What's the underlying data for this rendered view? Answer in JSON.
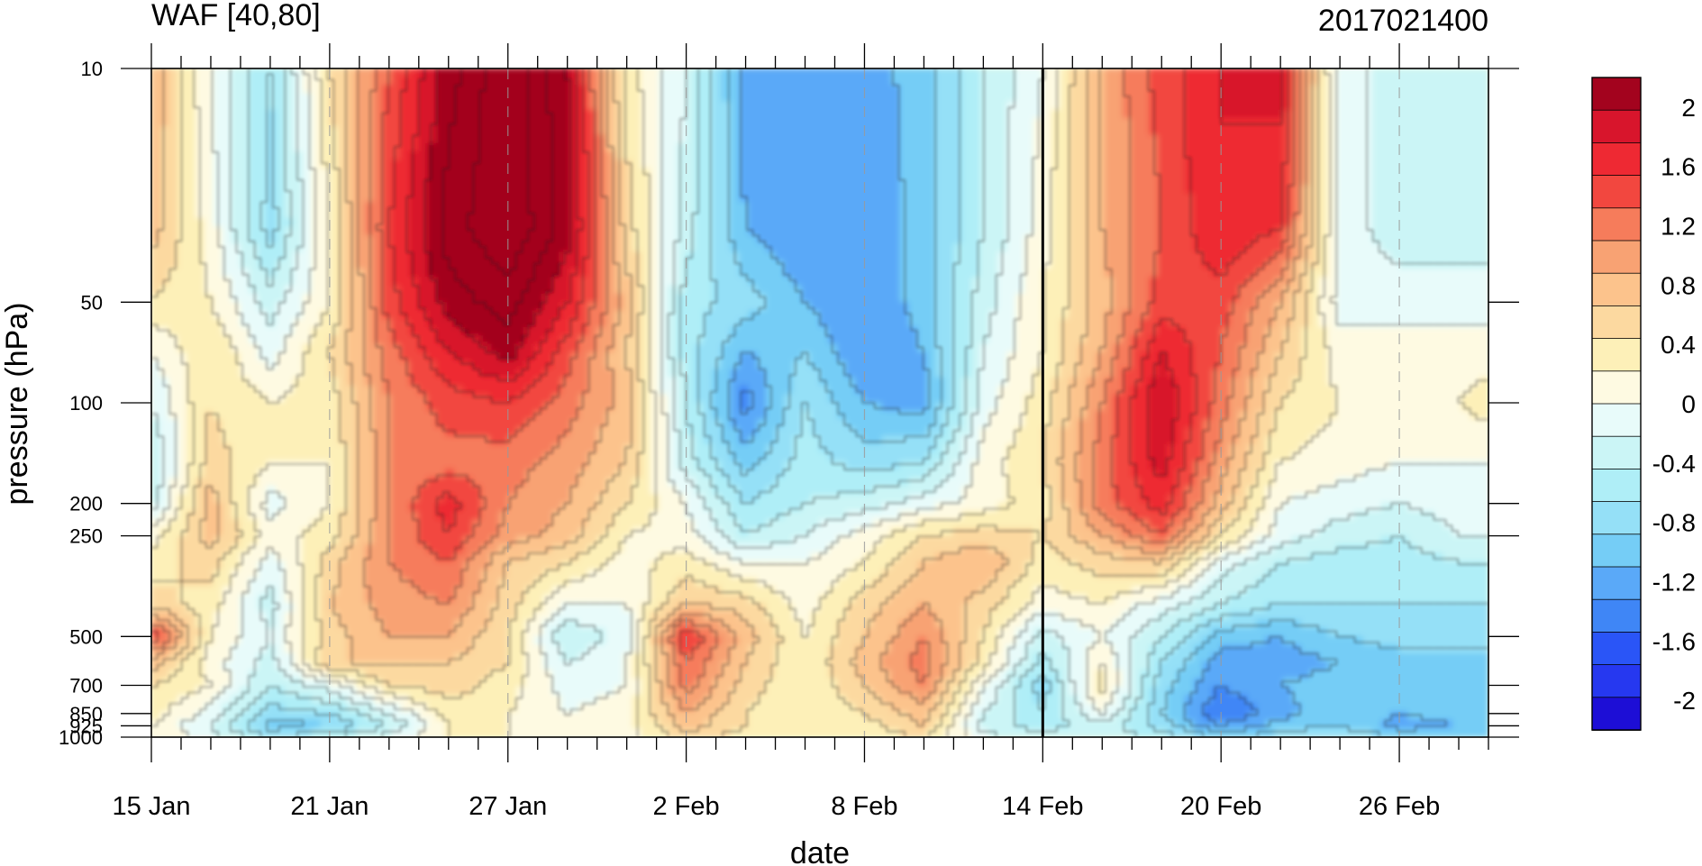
{
  "chart_data": {
    "type": "heatmap",
    "title": "WAF [40,80]",
    "subtitle": "2017021400",
    "xlabel": "date",
    "ylabel": "pressure (hPa)",
    "x_tick_labels": [
      "15 Jan",
      "21 Jan",
      "27 Jan",
      "2 Feb",
      "8 Feb",
      "14 Feb",
      "20 Feb",
      "26 Feb"
    ],
    "x_tick_day_index": [
      0,
      6,
      12,
      18,
      24,
      30,
      36,
      42
    ],
    "x_range_days": [
      0,
      45
    ],
    "y_tick_labels": [
      "10",
      "50",
      "100",
      "200",
      "250",
      "500",
      "700",
      "850",
      "925",
      "1000"
    ],
    "y_tick_values": [
      10,
      50,
      100,
      200,
      250,
      500,
      700,
      850,
      925,
      1000
    ],
    "y_range": [
      10,
      1000
    ],
    "y_scale": "log",
    "y_inverted": true,
    "marker_line_day_index": 30,
    "colorbar": {
      "labels": [
        "2",
        "1.6",
        "1.2",
        "0.8",
        "0.4",
        "0",
        "-0.4",
        "-0.8",
        "-1.2",
        "-1.6",
        "-2"
      ],
      "label_values": [
        2,
        1.6,
        1.2,
        0.8,
        0.4,
        0,
        -0.4,
        -0.8,
        -1.2,
        -1.6,
        -2
      ],
      "levels": [
        -2.2,
        -2.0,
        -1.8,
        -1.6,
        -1.4,
        -1.2,
        -1.0,
        -0.8,
        -0.6,
        -0.4,
        -0.2,
        0.0,
        0.2,
        0.4,
        0.6,
        0.8,
        1.0,
        1.2,
        1.4,
        1.6,
        1.8,
        2.0,
        2.2
      ],
      "colors": [
        "#1d0ed6",
        "#2638f0",
        "#2a55f7",
        "#3f86f6",
        "#5aa9f8",
        "#75cdf6",
        "#95e0f7",
        "#afeef7",
        "#cbf5f6",
        "#e8fbfa",
        "#fefae2",
        "#fdf0b8",
        "#fcd9a0",
        "#fcc38c",
        "#f8a273",
        "#f67c5b",
        "#f2473f",
        "#ee2933",
        "#d8152c",
        "#a3031e"
      ]
    },
    "field": {
      "p_levels": [
        10,
        30,
        50,
        70,
        100,
        150,
        200,
        250,
        300,
        400,
        500,
        600,
        700,
        850,
        925,
        1000
      ],
      "days": [
        0,
        2,
        4,
        6,
        8,
        10,
        12,
        14,
        16,
        18,
        20,
        22,
        24,
        26,
        28,
        30,
        32,
        34,
        36,
        38,
        40,
        42,
        44,
        45
      ],
      "values": [
        [
          0.6,
          -0.2,
          -0.8,
          0.2,
          1.0,
          1.7,
          2.2,
          1.6,
          0.1,
          -0.4,
          -1.3,
          -1.3,
          -1.3,
          -1.1,
          -0.6,
          -0.2,
          0.6,
          1.1,
          1.4,
          1.5,
          -0.4,
          -0.4,
          -0.4,
          -0.4
        ],
        [
          0.5,
          -0.1,
          -0.9,
          0.0,
          1.2,
          1.9,
          2.2,
          1.7,
          0.3,
          -0.5,
          -1.2,
          -1.4,
          -1.4,
          -1.1,
          -0.6,
          -0.1,
          0.6,
          1.0,
          1.4,
          1.2,
          -0.3,
          -0.5,
          -0.5,
          -0.5
        ],
        [
          0.2,
          0.0,
          -0.5,
          0.0,
          1.1,
          1.7,
          1.9,
          1.4,
          0.5,
          -0.7,
          -0.9,
          -1.2,
          -1.4,
          -1.1,
          -0.5,
          0.0,
          0.5,
          1.1,
          1.1,
          0.6,
          -0.3,
          -0.3,
          -0.3,
          -0.3
        ],
        [
          -0.2,
          0.2,
          -0.3,
          0.2,
          0.9,
          1.4,
          1.7,
          1.1,
          0.4,
          -0.7,
          -1.2,
          -1.0,
          -1.4,
          -1.2,
          -0.4,
          0.0,
          0.6,
          1.4,
          1.0,
          0.4,
          -0.1,
          -0.1,
          -0.1,
          -0.1
        ],
        [
          -0.4,
          0.2,
          0.0,
          0.1,
          0.8,
          1.1,
          1.2,
          0.9,
          0.5,
          -0.6,
          -1.5,
          -0.8,
          -1.2,
          -1.3,
          -0.3,
          0.1,
          0.8,
          1.6,
          0.9,
          0.2,
          0.0,
          -0.1,
          0.0,
          0.1
        ],
        [
          -0.6,
          0.3,
          0.0,
          0.0,
          0.8,
          0.9,
          0.9,
          0.7,
          0.4,
          -0.5,
          -1.1,
          -0.7,
          -0.9,
          -0.8,
          -0.1,
          0.2,
          0.9,
          1.5,
          0.7,
          0.0,
          -0.1,
          -0.2,
          -0.2,
          -0.2
        ],
        [
          -0.5,
          0.5,
          -0.3,
          0.0,
          0.8,
          1.3,
          0.8,
          0.6,
          0.2,
          -0.2,
          -0.8,
          -0.6,
          -0.5,
          -0.3,
          -0.1,
          0.1,
          0.9,
          1.3,
          0.5,
          -0.2,
          -0.3,
          -0.4,
          -0.3,
          -0.3
        ],
        [
          -0.1,
          0.5,
          -0.1,
          0.1,
          0.8,
          1.2,
          0.7,
          0.5,
          0.0,
          -0.1,
          -0.6,
          -0.4,
          -0.1,
          0.2,
          0.3,
          0.2,
          0.6,
          1.0,
          0.2,
          -0.3,
          -0.5,
          -0.6,
          -0.4,
          -0.4
        ],
        [
          0.1,
          0.3,
          -0.3,
          0.3,
          0.8,
          1.0,
          0.4,
          0.2,
          -0.1,
          0.1,
          -0.2,
          -0.2,
          0.0,
          0.4,
          0.6,
          0.1,
          0.3,
          0.4,
          -0.3,
          -0.6,
          -0.7,
          -0.7,
          -0.6,
          -0.6
        ],
        [
          0.3,
          0.1,
          -0.5,
          0.4,
          0.7,
          0.8,
          0.3,
          -0.2,
          -0.2,
          0.4,
          0.3,
          -0.1,
          0.3,
          0.6,
          0.3,
          -0.1,
          0.0,
          -0.3,
          -0.6,
          -0.8,
          -0.8,
          -0.8,
          -0.8,
          -0.8
        ],
        [
          1.2,
          0.0,
          -0.4,
          0.3,
          0.6,
          0.6,
          0.2,
          -0.6,
          -0.3,
          1.2,
          0.5,
          0.0,
          0.4,
          0.8,
          0.2,
          -0.5,
          -0.2,
          -0.6,
          -1.1,
          -1.2,
          -1.0,
          -0.9,
          -0.9,
          -0.9
        ],
        [
          0.5,
          -0.1,
          -0.5,
          0.4,
          0.4,
          0.4,
          0.2,
          -0.4,
          -0.2,
          1.0,
          0.4,
          0.0,
          0.5,
          0.9,
          0.1,
          -0.7,
          0.0,
          -0.8,
          -1.3,
          -1.3,
          -1.2,
          -1.1,
          -1.1,
          -1.1
        ],
        [
          0.2,
          0.0,
          -0.6,
          -0.3,
          0.2,
          0.3,
          0.1,
          -0.3,
          -0.2,
          0.9,
          0.3,
          0.0,
          0.4,
          0.8,
          -0.2,
          -0.9,
          0.1,
          -0.9,
          -1.4,
          -1.2,
          -1.1,
          -1.1,
          -1.0,
          -1.0
        ],
        [
          0.1,
          -0.3,
          -0.9,
          -0.8,
          -0.4,
          0.1,
          0.0,
          -0.2,
          -0.1,
          0.6,
          0.2,
          0.0,
          0.2,
          0.5,
          -0.4,
          -0.8,
          -0.2,
          -1.0,
          -1.6,
          -1.3,
          -1.0,
          -1.2,
          -1.1,
          -1.1
        ],
        [
          0.0,
          -0.4,
          -1.1,
          -1.0,
          -0.6,
          0.0,
          0.0,
          -0.2,
          -0.1,
          0.5,
          0.2,
          0.0,
          0.1,
          0.4,
          -0.5,
          -0.7,
          -0.5,
          -0.9,
          -1.4,
          -1.1,
          -1.0,
          -1.3,
          -1.2,
          -1.2
        ],
        [
          0.0,
          -0.3,
          -0.8,
          -0.6,
          -0.3,
          0.0,
          0.0,
          -0.1,
          -0.1,
          0.3,
          0.1,
          0.0,
          0.1,
          0.2,
          -0.3,
          -0.5,
          -0.4,
          -0.7,
          -1.0,
          -0.9,
          -0.8,
          -1.0,
          -1.0,
          -1.0
        ]
      ]
    }
  }
}
